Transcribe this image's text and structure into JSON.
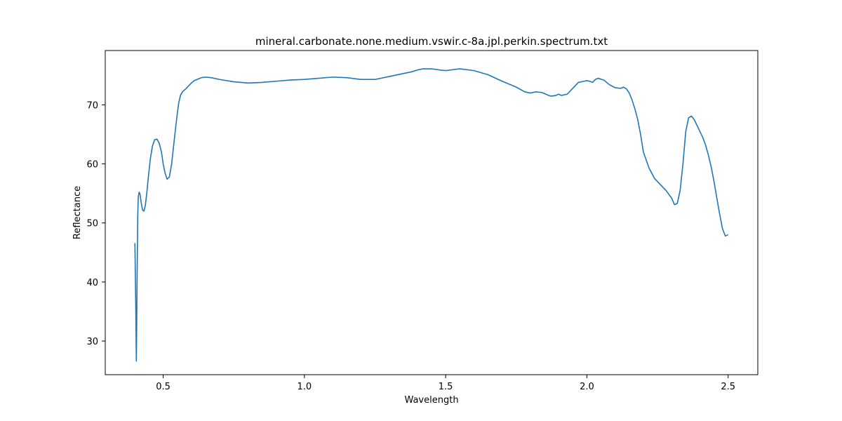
{
  "chart_data": {
    "type": "line",
    "title": "mineral.carbonate.none.medium.vswir.c-8a.jpl.perkin.spectrum.txt",
    "xlabel": "Wavelength",
    "ylabel": "Reflectance",
    "xlim": [
      0.295,
      2.605
    ],
    "ylim": [
      24.3,
      79.2
    ],
    "xticks": [
      "0.5",
      "1.0",
      "1.5",
      "2.0",
      "2.5"
    ],
    "yticks": [
      "30",
      "40",
      "50",
      "60",
      "70"
    ],
    "grid": false,
    "legend": "none",
    "color": "#1f77b4",
    "series": [
      {
        "x": [
          0.4,
          0.403,
          0.405,
          0.406,
          0.408,
          0.41,
          0.412,
          0.415,
          0.418,
          0.422,
          0.427,
          0.432,
          0.437,
          0.442,
          0.448,
          0.455,
          0.462,
          0.47,
          0.478,
          0.486,
          0.494,
          0.5,
          0.507,
          0.514,
          0.522,
          0.53,
          0.538,
          0.545,
          0.55,
          0.555,
          0.562,
          0.57,
          0.58,
          0.59,
          0.6,
          0.61,
          0.62,
          0.635,
          0.65,
          0.67,
          0.7,
          0.75,
          0.8,
          0.85,
          0.9,
          0.95,
          1.0,
          1.05,
          1.1,
          1.15,
          1.2,
          1.25,
          1.3,
          1.35,
          1.38,
          1.4,
          1.42,
          1.45,
          1.48,
          1.5,
          1.55,
          1.6,
          1.65,
          1.7,
          1.75,
          1.78,
          1.8,
          1.82,
          1.84,
          1.86,
          1.87,
          1.88,
          1.89,
          1.9,
          1.91,
          1.93,
          1.95,
          1.97,
          1.99,
          2.0,
          2.01,
          2.02,
          2.03,
          2.04,
          2.06,
          2.08,
          2.1,
          2.12,
          2.13,
          2.14,
          2.15,
          2.16,
          2.17,
          2.18,
          2.19,
          2.2,
          2.22,
          2.24,
          2.26,
          2.28,
          2.3,
          2.31,
          2.32,
          2.33,
          2.34,
          2.35,
          2.36,
          2.37,
          2.38,
          2.39,
          2.4,
          2.41,
          2.42,
          2.43,
          2.44,
          2.45,
          2.46,
          2.47,
          2.48,
          2.49,
          2.5
        ],
        "y": [
          46.6,
          36.0,
          26.6,
          31.0,
          42.0,
          51.0,
          54.5,
          55.2,
          54.9,
          53.5,
          52.2,
          52.0,
          53.0,
          55.0,
          58.0,
          61.0,
          63.0,
          64.1,
          64.2,
          63.5,
          62.0,
          60.0,
          58.4,
          57.4,
          57.8,
          60.0,
          63.5,
          66.5,
          68.5,
          70.3,
          71.7,
          72.3,
          72.7,
          73.2,
          73.7,
          74.1,
          74.3,
          74.6,
          74.7,
          74.6,
          74.3,
          73.9,
          73.7,
          73.8,
          74.0,
          74.2,
          74.3,
          74.5,
          74.7,
          74.6,
          74.3,
          74.3,
          74.8,
          75.3,
          75.6,
          75.9,
          76.1,
          76.1,
          75.9,
          75.8,
          76.1,
          75.8,
          75.1,
          74.0,
          73.0,
          72.2,
          72.0,
          72.2,
          72.1,
          71.7,
          71.5,
          71.5,
          71.6,
          71.8,
          71.6,
          71.8,
          72.8,
          73.8,
          74.0,
          74.1,
          74.0,
          73.8,
          74.3,
          74.5,
          74.2,
          73.4,
          72.9,
          72.8,
          73.0,
          72.7,
          72.0,
          70.8,
          69.3,
          67.5,
          65.0,
          62.0,
          59.3,
          57.5,
          56.5,
          55.5,
          54.2,
          53.1,
          53.3,
          55.5,
          60.0,
          65.5,
          67.8,
          68.1,
          67.5,
          66.5,
          65.5,
          64.5,
          63.2,
          61.5,
          59.5,
          57.0,
          54.2,
          51.5,
          49.0,
          47.8,
          48.0
        ]
      }
    ]
  }
}
